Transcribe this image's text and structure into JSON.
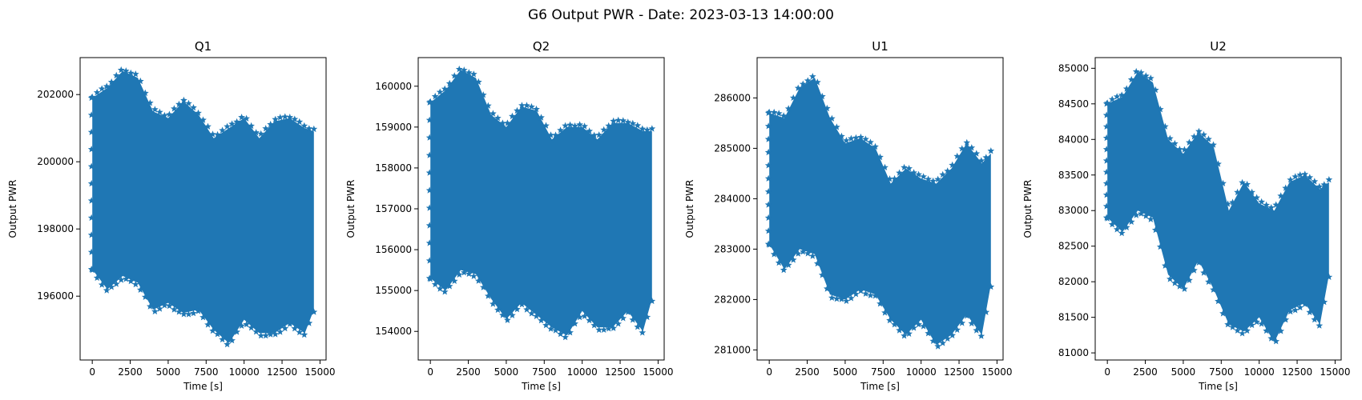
{
  "figure": {
    "title": "G6 Output PWR - Date: 2023-03-13 14:00:00"
  },
  "colors": {
    "series": "#1f77b4"
  },
  "chart_data": [
    {
      "type": "scatter",
      "title": "Q1",
      "xlabel": "Time [s]",
      "ylabel": "Output PWR",
      "marker": "star",
      "xlim": [
        -800,
        15400
      ],
      "ylim": [
        194100,
        203100
      ],
      "xticks": [
        0,
        2500,
        5000,
        7500,
        10000,
        12500,
        15000
      ],
      "yticks": [
        196000,
        198000,
        200000,
        202000
      ],
      "x": [
        0,
        1000,
        2000,
        3000,
        4000,
        5000,
        6000,
        7000,
        8000,
        9000,
        10000,
        11000,
        12000,
        13000,
        14000,
        14600
      ],
      "envelope_upper": [
        201900,
        202200,
        202700,
        202500,
        201500,
        201300,
        201800,
        201400,
        200700,
        201000,
        201300,
        200700,
        201200,
        201300,
        201000,
        200900
      ],
      "envelope_lower": [
        196800,
        196200,
        196600,
        196400,
        195600,
        195800,
        195500,
        195600,
        195000,
        194600,
        195300,
        194900,
        194900,
        195200,
        194900,
        195600
      ]
    },
    {
      "type": "scatter",
      "title": "Q2",
      "xlabel": "Time [s]",
      "ylabel": "Output PWR",
      "marker": "star",
      "xlim": [
        -800,
        15400
      ],
      "ylim": [
        153300,
        160700
      ],
      "xticks": [
        0,
        2500,
        5000,
        7500,
        10000,
        12500,
        15000
      ],
      "yticks": [
        154000,
        155000,
        156000,
        157000,
        158000,
        159000,
        160000
      ],
      "x": [
        0,
        1000,
        2000,
        3000,
        4000,
        5000,
        6000,
        7000,
        8000,
        9000,
        10000,
        11000,
        12000,
        13000,
        14000,
        14600
      ],
      "envelope_upper": [
        159600,
        159900,
        160400,
        160200,
        159300,
        159000,
        159500,
        159400,
        158700,
        159000,
        159000,
        158700,
        159100,
        159100,
        158900,
        158900
      ],
      "envelope_lower": [
        155300,
        155000,
        155500,
        155400,
        154800,
        154300,
        154700,
        154400,
        154100,
        153900,
        154500,
        154100,
        154100,
        154500,
        154000,
        154800
      ]
    },
    {
      "type": "scatter",
      "title": "U1",
      "xlabel": "Time [s]",
      "ylabel": "Output PWR",
      "marker": "star",
      "xlim": [
        -800,
        15400
      ],
      "ylim": [
        280800,
        286800
      ],
      "xticks": [
        0,
        2500,
        5000,
        7500,
        10000,
        12500,
        15000
      ],
      "yticks": [
        281000,
        282000,
        283000,
        284000,
        285000,
        286000
      ],
      "x": [
        0,
        1000,
        2000,
        3000,
        4000,
        5000,
        6000,
        7000,
        8000,
        9000,
        10000,
        11000,
        12000,
        13000,
        14000,
        14600
      ],
      "envelope_upper": [
        285700,
        285600,
        286200,
        286400,
        285600,
        285100,
        285200,
        285000,
        284300,
        284600,
        284400,
        284300,
        284600,
        285100,
        284700,
        284900
      ],
      "envelope_lower": [
        283100,
        282600,
        283000,
        282900,
        282100,
        282000,
        282200,
        282100,
        281600,
        281300,
        281600,
        281100,
        281300,
        281700,
        281300,
        282300
      ]
    },
    {
      "type": "scatter",
      "title": "U2",
      "xlabel": "Time [s]",
      "ylabel": "Output PWR",
      "marker": "star",
      "xlim": [
        -800,
        15400
      ],
      "ylim": [
        80900,
        85150
      ],
      "xticks": [
        0,
        2500,
        5000,
        7500,
        10000,
        12500,
        15000
      ],
      "yticks": [
        81000,
        81500,
        82000,
        82500,
        83000,
        83500,
        84000,
        84500,
        85000
      ],
      "x": [
        0,
        1000,
        2000,
        3000,
        4000,
        5000,
        6000,
        7000,
        8000,
        9000,
        10000,
        11000,
        12000,
        13000,
        14000,
        14600
      ],
      "envelope_upper": [
        84500,
        84600,
        84950,
        84800,
        84000,
        83800,
        84100,
        83900,
        83000,
        83400,
        83100,
        83000,
        83400,
        83500,
        83300,
        83400
      ],
      "envelope_lower": [
        82900,
        82700,
        83000,
        82900,
        82100,
        81900,
        82300,
        81900,
        81400,
        81300,
        81500,
        81150,
        81600,
        81700,
        81400,
        82100
      ]
    }
  ]
}
